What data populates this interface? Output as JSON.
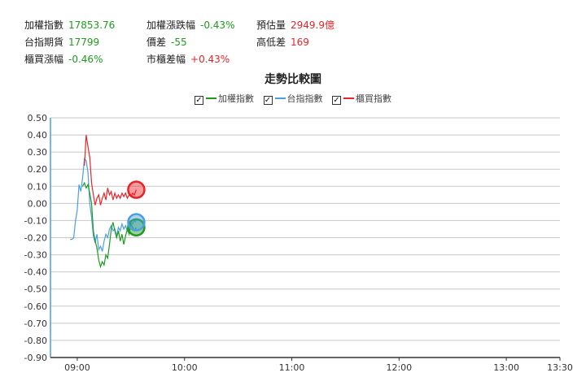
{
  "info": [
    {
      "label": "加權指數",
      "value": "17853.76",
      "color": "green"
    },
    {
      "label": "加權漲跌幅",
      "value": "-0.43%",
      "color": "green"
    },
    {
      "label": "預估量",
      "value": "2949.9億",
      "color": "red"
    },
    {
      "label": "台指期貨",
      "value": "17799",
      "color": "green"
    },
    {
      "label": "價差",
      "value": "-55",
      "color": "green"
    },
    {
      "label": "高低差",
      "value": "169",
      "color": "red"
    },
    {
      "label": "櫃買漲幅",
      "value": "-0.46%",
      "color": "green"
    },
    {
      "label": "市櫃差幅",
      "value": "+0.43%",
      "color": "red"
    }
  ],
  "colors": {
    "green": "#1e9b1e",
    "red": "#e8242a",
    "blue": "#4a9fe0"
  },
  "chart_data": {
    "type": "line",
    "title": "走勢比較圖",
    "xlabel": "",
    "ylabel": "",
    "x_ticks": [
      "09:00",
      "10:00",
      "11:00",
      "12:00",
      "13:00",
      "13:30"
    ],
    "y_ticks": [
      "0.50",
      "0.40",
      "0.30",
      "0.20",
      "0.10",
      "0.00",
      "-0.10",
      "-0.20",
      "-0.30",
      "-0.40",
      "-0.50",
      "-0.60",
      "-0.70",
      "-0.80",
      "-0.90"
    ],
    "ylim": [
      -0.9,
      0.5
    ],
    "xlim_minutes": [
      525,
      810
    ],
    "grid": true,
    "legend_position": "top",
    "series": [
      {
        "name": "加權指數",
        "color": "#1e9b1e",
        "endpoint": true,
        "points": [
          [
            543,
            0.1
          ],
          [
            544,
            0.12
          ],
          [
            545,
            0.09
          ],
          [
            546,
            0.11
          ],
          [
            547,
            0.06
          ],
          [
            548,
            0.0
          ],
          [
            549,
            -0.16
          ],
          [
            550,
            -0.22
          ],
          [
            551,
            -0.26
          ],
          [
            552,
            -0.33
          ],
          [
            553,
            -0.37
          ],
          [
            554,
            -0.34
          ],
          [
            555,
            -0.36
          ],
          [
            556,
            -0.3
          ],
          [
            557,
            -0.32
          ],
          [
            558,
            -0.24
          ],
          [
            559,
            -0.15
          ],
          [
            560,
            -0.11
          ],
          [
            561,
            -0.16
          ],
          [
            562,
            -0.2
          ],
          [
            563,
            -0.16
          ],
          [
            564,
            -0.22
          ],
          [
            565,
            -0.18
          ],
          [
            566,
            -0.24
          ],
          [
            567,
            -0.19
          ],
          [
            568,
            -0.15
          ],
          [
            569,
            -0.18
          ],
          [
            570,
            -0.12
          ],
          [
            571,
            -0.14
          ],
          [
            572,
            -0.16
          ],
          [
            573,
            -0.14
          ]
        ]
      },
      {
        "name": "台指指數",
        "color": "#4a9fe0",
        "endpoint": true,
        "points": [
          [
            536,
            -0.21
          ],
          [
            537,
            -0.21
          ],
          [
            538,
            -0.2
          ],
          [
            539,
            -0.1
          ],
          [
            540,
            -0.04
          ],
          [
            541,
            0.11
          ],
          [
            542,
            0.07
          ],
          [
            543,
            0.15
          ],
          [
            544,
            0.26
          ],
          [
            545,
            0.25
          ],
          [
            546,
            0.18
          ],
          [
            547,
            0.0
          ],
          [
            548,
            -0.08
          ],
          [
            549,
            -0.19
          ],
          [
            550,
            -0.23
          ],
          [
            551,
            -0.18
          ],
          [
            552,
            -0.27
          ],
          [
            553,
            -0.25
          ],
          [
            554,
            -0.28
          ],
          [
            555,
            -0.22
          ],
          [
            556,
            -0.18
          ],
          [
            557,
            -0.2
          ],
          [
            558,
            -0.15
          ],
          [
            559,
            -0.13
          ],
          [
            560,
            -0.16
          ],
          [
            561,
            -0.15
          ],
          [
            562,
            -0.19
          ],
          [
            563,
            -0.14
          ],
          [
            564,
            -0.16
          ],
          [
            565,
            -0.12
          ],
          [
            566,
            -0.15
          ],
          [
            567,
            -0.13
          ],
          [
            568,
            -0.16
          ],
          [
            569,
            -0.14
          ],
          [
            570,
            -0.11
          ],
          [
            571,
            -0.12
          ],
          [
            572,
            -0.1
          ],
          [
            573,
            -0.11
          ]
        ]
      },
      {
        "name": "櫃買指數",
        "color": "#e8242a",
        "endpoint": true,
        "points": [
          [
            544,
            0.22
          ],
          [
            545,
            0.4
          ],
          [
            546,
            0.33
          ],
          [
            547,
            0.27
          ],
          [
            548,
            0.12
          ],
          [
            549,
            0.05
          ],
          [
            550,
            -0.01
          ],
          [
            551,
            0.03
          ],
          [
            552,
            0.05
          ],
          [
            553,
            -0.01
          ],
          [
            554,
            0.03
          ],
          [
            555,
            0.06
          ],
          [
            556,
            0.02
          ],
          [
            557,
            0.09
          ],
          [
            558,
            0.05
          ],
          [
            559,
            0.07
          ],
          [
            560,
            0.02
          ],
          [
            561,
            0.06
          ],
          [
            562,
            0.03
          ],
          [
            563,
            0.05
          ],
          [
            564,
            0.03
          ],
          [
            565,
            0.06
          ],
          [
            566,
            0.04
          ],
          [
            567,
            0.06
          ],
          [
            568,
            0.03
          ],
          [
            569,
            0.05
          ],
          [
            570,
            0.04
          ],
          [
            571,
            0.06
          ],
          [
            572,
            0.05
          ],
          [
            573,
            0.08
          ]
        ]
      }
    ]
  }
}
